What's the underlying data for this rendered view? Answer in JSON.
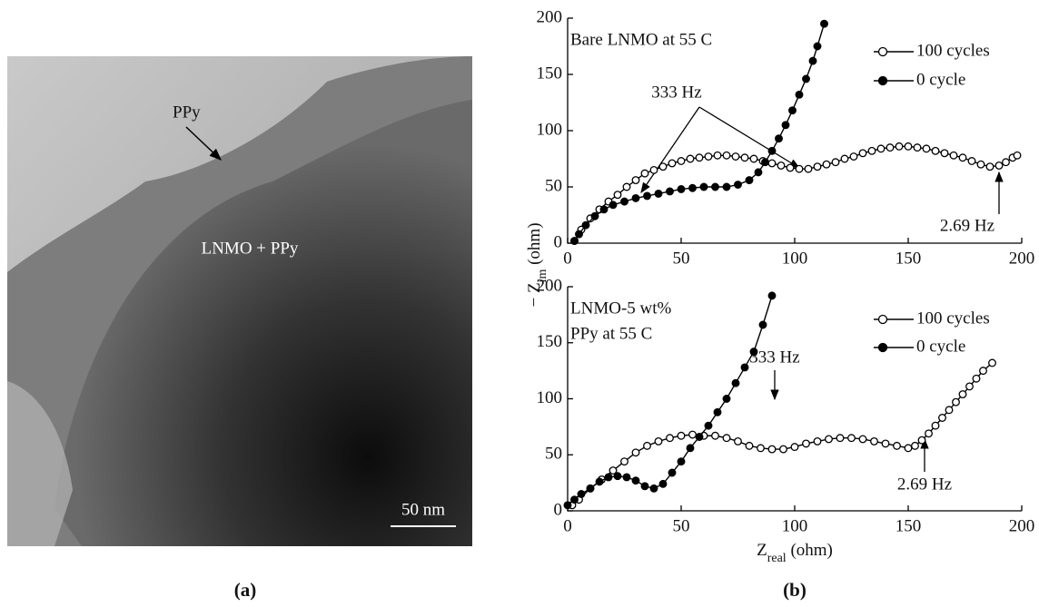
{
  "image_panel": {
    "labels": [
      "PPy",
      "LNMO + PPy"
    ],
    "scale_bar": "50 nm"
  },
  "panel_labels": [
    "(a)",
    "(b)"
  ],
  "shared_y_label": {
    "main": "− Z",
    "sub": "im",
    "unit": " (ohm)"
  },
  "chart_data": [
    {
      "type": "line",
      "title_lines": [
        "Bare LNMO at 55 C"
      ],
      "annotations": [
        "333 Hz",
        "2.69 Hz"
      ],
      "xlim": [
        0,
        200
      ],
      "xticks": [
        0,
        50,
        100,
        150,
        200
      ],
      "ylim": [
        0,
        200
      ],
      "yticks": [
        0,
        50,
        100,
        150,
        200
      ],
      "series": [
        {
          "name": "100 cycles",
          "color": "#000000",
          "marker": "open",
          "x": [
            3,
            6,
            10,
            14,
            18,
            22,
            26,
            30,
            34,
            38,
            42,
            46,
            50,
            54,
            58,
            62,
            66,
            70,
            74,
            78,
            82,
            86,
            90,
            94,
            98,
            102,
            106,
            110,
            114,
            118,
            122,
            126,
            130,
            134,
            138,
            142,
            146,
            150,
            154,
            158,
            162,
            166,
            170,
            174,
            178,
            182,
            186,
            190,
            193,
            196,
            198
          ],
          "values": [
            2,
            12,
            22,
            30,
            37,
            43,
            50,
            56,
            62,
            65,
            68,
            71,
            73,
            75,
            76,
            77,
            78,
            78,
            77,
            76,
            75,
            73,
            71,
            69,
            67,
            66,
            66,
            68,
            70,
            72,
            75,
            77,
            80,
            82,
            84,
            85,
            86,
            86,
            85,
            84,
            82,
            80,
            78,
            76,
            73,
            70,
            68,
            69,
            72,
            76,
            78
          ]
        },
        {
          "name": "0 cycle",
          "color": "#000000",
          "marker": "filled",
          "x": [
            3,
            5,
            8,
            12,
            16,
            20,
            25,
            30,
            35,
            40,
            45,
            50,
            55,
            60,
            65,
            70,
            75,
            80,
            84,
            87,
            90,
            93,
            96,
            99,
            102,
            105,
            108,
            110,
            113
          ],
          "values": [
            2,
            8,
            16,
            24,
            30,
            34,
            37,
            40,
            42,
            44,
            46,
            48,
            49,
            50,
            50,
            50,
            52,
            56,
            63,
            72,
            82,
            93,
            105,
            118,
            132,
            146,
            162,
            175,
            195
          ]
        }
      ]
    },
    {
      "type": "line",
      "title_lines": [
        "LNMO-5 wt%",
        "PPy at 55 C"
      ],
      "annotations": [
        "333 Hz",
        "2.69 Hz"
      ],
      "x_label": {
        "main": "Z",
        "sub": "real",
        "unit": " (ohm)"
      },
      "xlim": [
        0,
        200
      ],
      "xticks": [
        0,
        50,
        100,
        150,
        200
      ],
      "ylim": [
        0,
        200
      ],
      "yticks": [
        0,
        50,
        100,
        150,
        200
      ],
      "series": [
        {
          "name": "100 cycles",
          "color": "#000000",
          "marker": "open",
          "x": [
            2,
            5,
            10,
            15,
            20,
            25,
            30,
            35,
            40,
            45,
            50,
            55,
            60,
            65,
            70,
            75,
            80,
            85,
            90,
            95,
            100,
            105,
            110,
            115,
            120,
            125,
            130,
            135,
            140,
            145,
            150,
            153,
            156,
            159,
            162,
            165,
            168,
            171,
            174,
            177,
            180,
            183,
            187
          ],
          "values": [
            5,
            10,
            20,
            28,
            36,
            44,
            52,
            58,
            62,
            65,
            67,
            68,
            67,
            67,
            65,
            62,
            58,
            56,
            55,
            55,
            57,
            60,
            62,
            64,
            65,
            65,
            64,
            62,
            60,
            58,
            56,
            58,
            63,
            69,
            76,
            83,
            90,
            97,
            104,
            111,
            118,
            125,
            132
          ]
        },
        {
          "name": "0 cycle",
          "color": "#000000",
          "marker": "filled",
          "x": [
            0,
            3,
            6,
            10,
            14,
            18,
            22,
            26,
            30,
            34,
            38,
            42,
            46,
            50,
            54,
            58,
            62,
            66,
            70,
            74,
            78,
            82,
            86,
            90
          ],
          "values": [
            5,
            10,
            15,
            20,
            26,
            30,
            31,
            30,
            27,
            22,
            20,
            24,
            34,
            44,
            56,
            66,
            76,
            88,
            100,
            114,
            128,
            142,
            166,
            192
          ]
        }
      ]
    }
  ]
}
